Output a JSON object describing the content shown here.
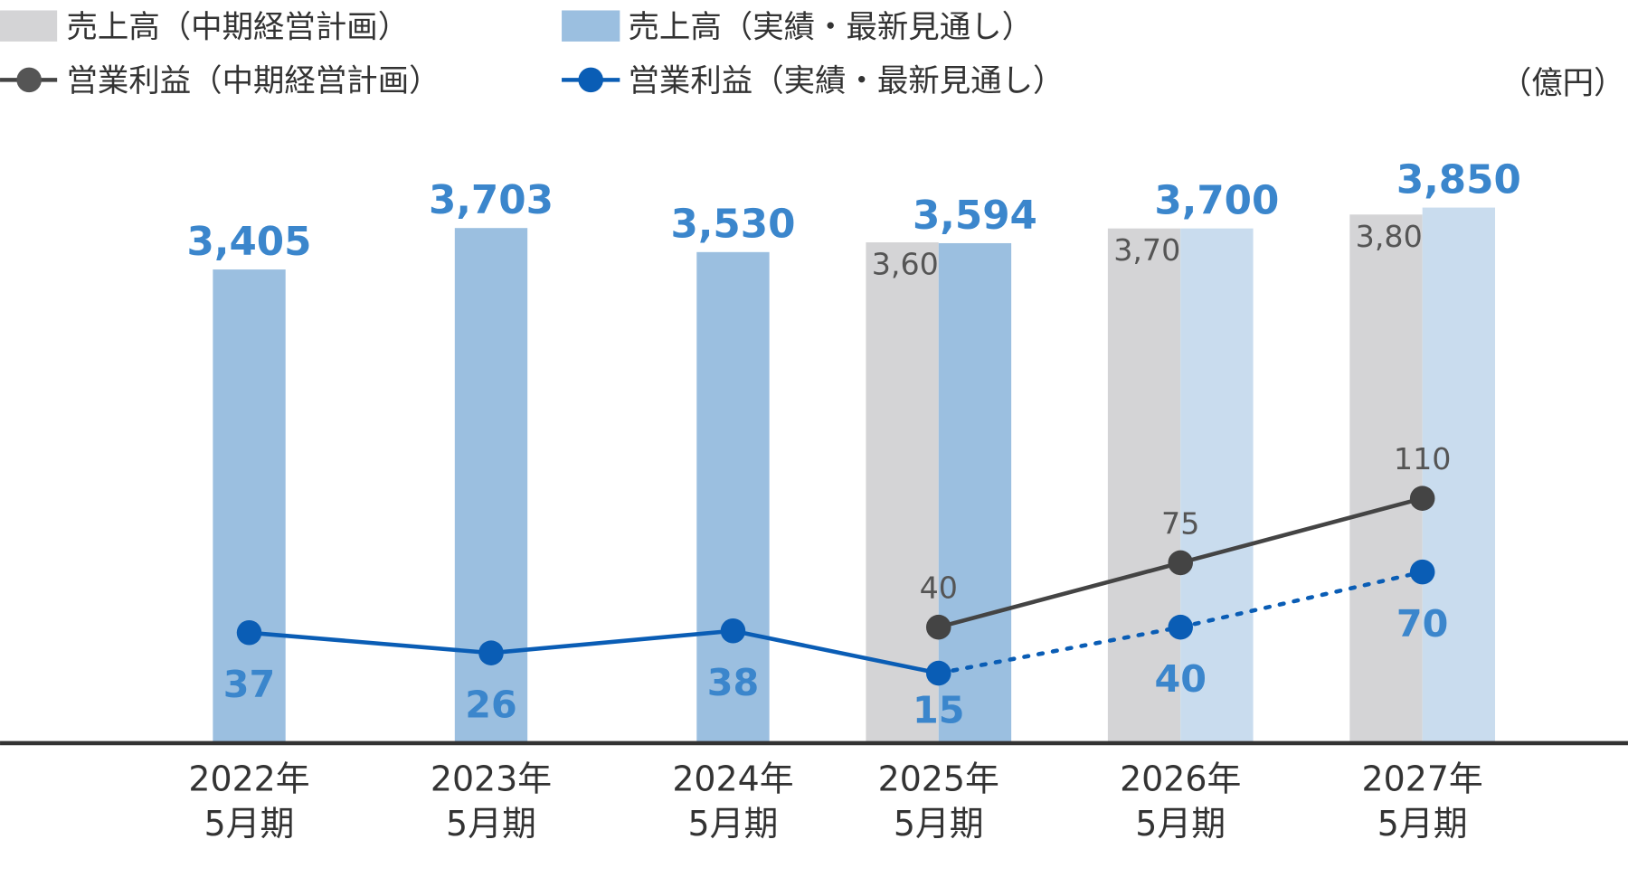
{
  "chart_data": {
    "type": "bar",
    "unit": "（億円）",
    "categories": [
      {
        "year": "2022年",
        "period": "5月期"
      },
      {
        "year": "2023年",
        "period": "5月期"
      },
      {
        "year": "2024年",
        "period": "5月期"
      },
      {
        "year": "2025年",
        "period": "5月期"
      },
      {
        "year": "2026年",
        "period": "5月期"
      },
      {
        "year": "2027年",
        "period": "5月期"
      }
    ],
    "ylim": [
      0,
      3850
    ],
    "y2lim": [
      -23,
      268
    ],
    "grid": false,
    "legend_position": "top-left",
    "series": [
      {
        "name": "売上高（中期経営計画）",
        "kind": "bar",
        "color": "#d4d4d6",
        "values": [
          null,
          null,
          null,
          3600,
          3700,
          3800
        ],
        "labels": [
          "",
          "",
          "",
          "3,600",
          "3,700",
          "3,800"
        ]
      },
      {
        "name": "売上高（実績・最新見通し）",
        "kind": "bar",
        "color": "#9bbfe0",
        "forecast_color": "#c9dcee",
        "values": [
          3405,
          3703,
          3530,
          3594,
          3700,
          3850
        ],
        "forecast": [
          false,
          false,
          false,
          false,
          true,
          true
        ],
        "labels": [
          "3,405",
          "3,703",
          "3,530",
          "3,594",
          "3,700",
          "3,850"
        ]
      },
      {
        "name": "営業利益（中期経営計画）",
        "kind": "line",
        "axis": "secondary",
        "color": "#444444",
        "values": [
          null,
          null,
          null,
          40,
          75,
          110
        ],
        "labels": [
          "",
          "",
          "",
          "40",
          "75",
          "110"
        ]
      },
      {
        "name": "営業利益（実績・最新見通し）",
        "kind": "line",
        "axis": "secondary",
        "color": "#0a5db5",
        "values": [
          37,
          26,
          38,
          15,
          40,
          70
        ],
        "forecast": [
          false,
          false,
          false,
          false,
          true,
          true
        ],
        "labels": [
          "37",
          "26",
          "38",
          "15",
          "40",
          "70"
        ]
      }
    ]
  }
}
